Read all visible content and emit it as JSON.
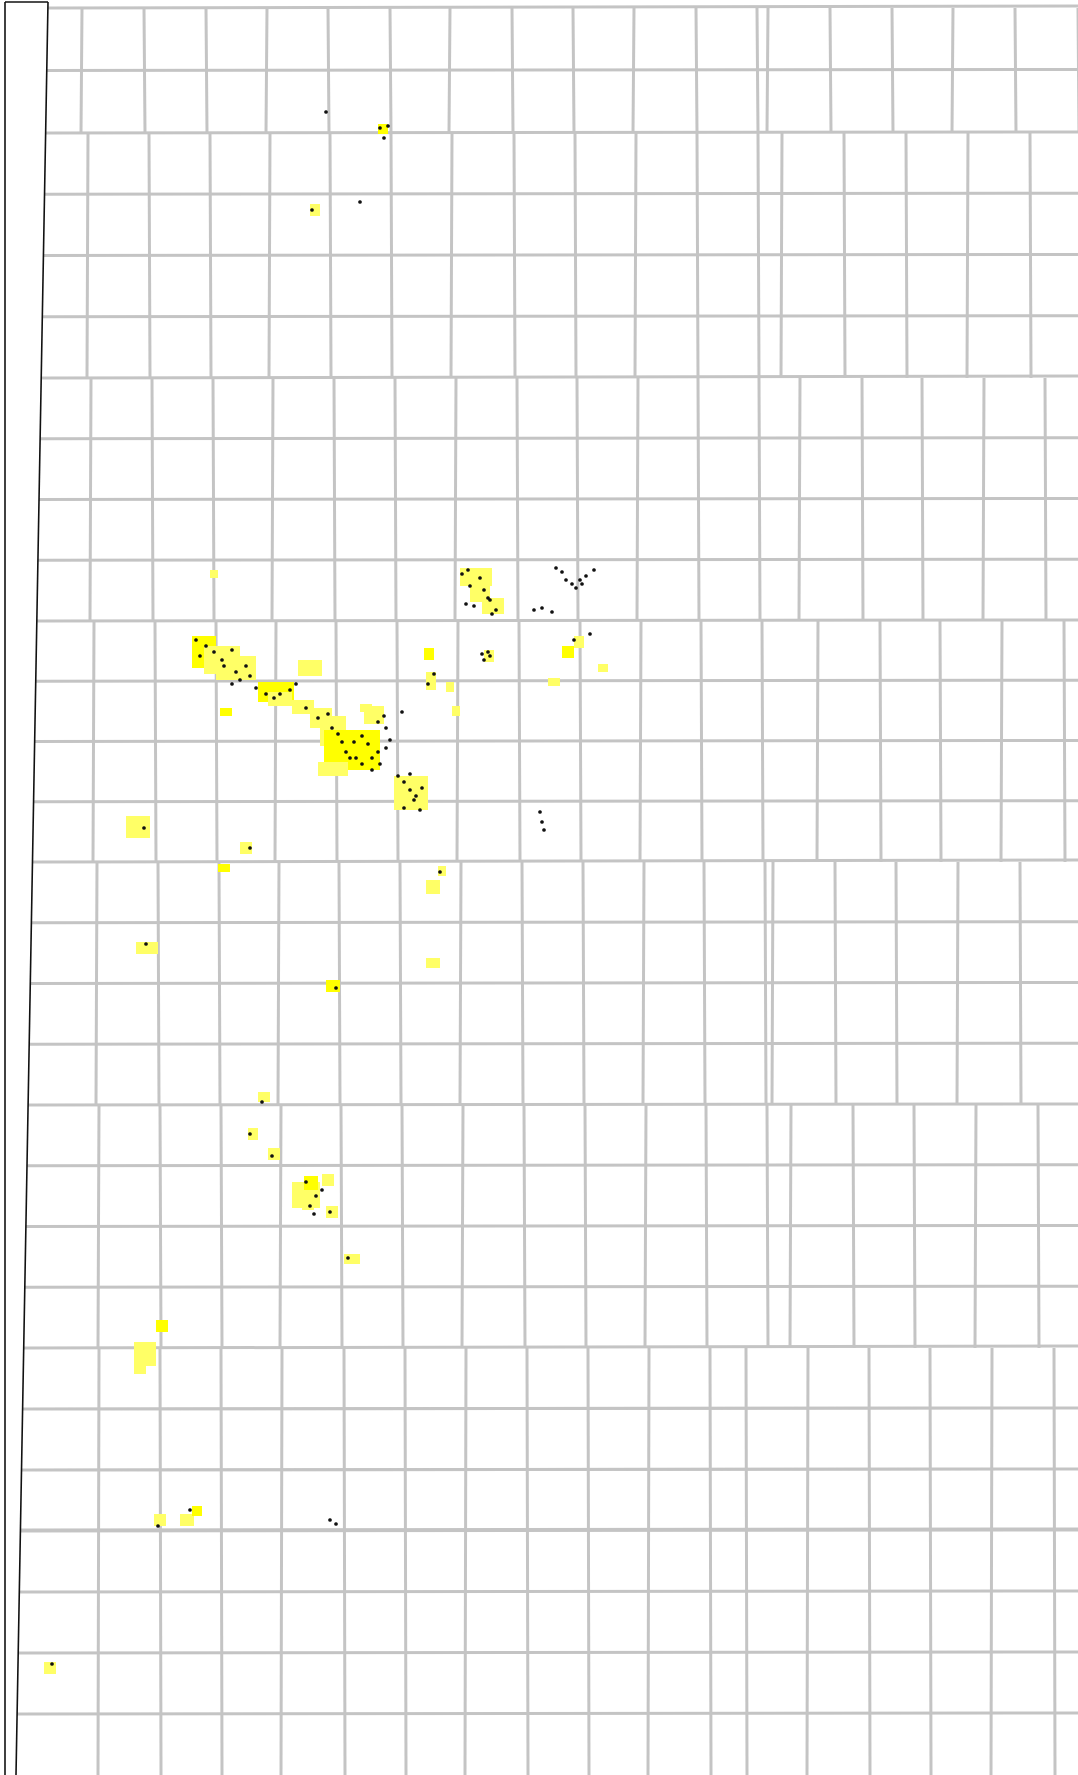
{
  "map": {
    "description_label": "",
    "colors": {
      "background": "#ffffff",
      "grid": "#c4c4c4",
      "boundary": "#111111",
      "field_light": "#ffff66",
      "field_bright": "#ffff00",
      "well": "#111111"
    },
    "layers": [
      {
        "name": "township-range-grid",
        "kind": "lines"
      },
      {
        "name": "county-boundary",
        "kind": "lines"
      },
      {
        "name": "oil-gas-field-areas",
        "kind": "polygons",
        "color": "field_light"
      },
      {
        "name": "well-locations",
        "kind": "points",
        "color": "well"
      }
    ]
  }
}
